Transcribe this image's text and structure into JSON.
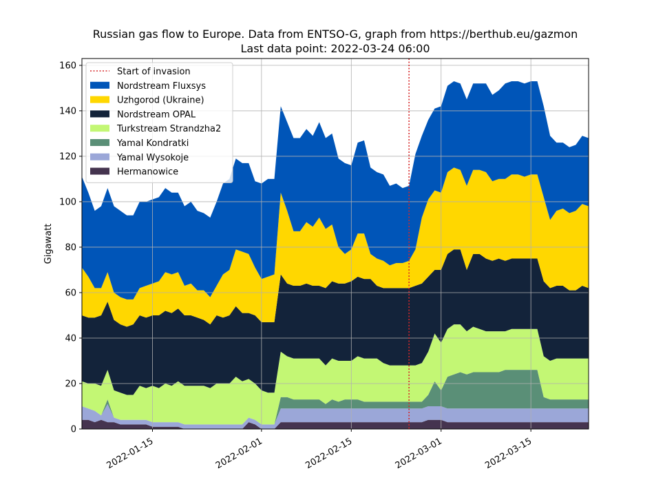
{
  "chart_data": {
    "type": "area",
    "stacked": true,
    "title": "Russian gas flow to Europe. Data from ENTSO-G, graph from https://berthub.eu/gazmon",
    "subtitle": "Last data point: 2022-03-24 06:00",
    "xlabel": "",
    "ylabel": "Gigawatt",
    "x_range": [
      "2022-01-04",
      "2022-03-24"
    ],
    "ylim": [
      0,
      163
    ],
    "grid": true,
    "legend_position": "top-left",
    "x_ticks": [
      "2022-01-15",
      "2022-02-01",
      "2022-02-15",
      "2022-03-01",
      "2022-03-15"
    ],
    "y_ticks": [
      0,
      20,
      40,
      60,
      80,
      100,
      120,
      140,
      160
    ],
    "annotation": {
      "label": "Start of invasion",
      "x": "2022-02-24",
      "color": "#d62728",
      "style": "dotted"
    },
    "x": [
      "2022-01-04",
      "2022-01-05",
      "2022-01-06",
      "2022-01-07",
      "2022-01-08",
      "2022-01-09",
      "2022-01-10",
      "2022-01-11",
      "2022-01-12",
      "2022-01-13",
      "2022-01-14",
      "2022-01-15",
      "2022-01-16",
      "2022-01-17",
      "2022-01-18",
      "2022-01-19",
      "2022-01-20",
      "2022-01-21",
      "2022-01-22",
      "2022-01-23",
      "2022-01-24",
      "2022-01-25",
      "2022-01-26",
      "2022-01-27",
      "2022-01-28",
      "2022-01-29",
      "2022-01-30",
      "2022-01-31",
      "2022-02-01",
      "2022-02-02",
      "2022-02-03",
      "2022-02-04",
      "2022-02-05",
      "2022-02-06",
      "2022-02-07",
      "2022-02-08",
      "2022-02-09",
      "2022-02-10",
      "2022-02-11",
      "2022-02-12",
      "2022-02-13",
      "2022-02-14",
      "2022-02-15",
      "2022-02-16",
      "2022-02-17",
      "2022-02-18",
      "2022-02-19",
      "2022-02-20",
      "2022-02-21",
      "2022-02-22",
      "2022-02-23",
      "2022-02-24",
      "2022-02-25",
      "2022-02-26",
      "2022-02-27",
      "2022-02-28",
      "2022-03-01",
      "2022-03-02",
      "2022-03-03",
      "2022-03-04",
      "2022-03-05",
      "2022-03-06",
      "2022-03-07",
      "2022-03-08",
      "2022-03-09",
      "2022-03-10",
      "2022-03-11",
      "2022-03-12",
      "2022-03-13",
      "2022-03-14",
      "2022-03-15",
      "2022-03-16",
      "2022-03-17",
      "2022-03-18",
      "2022-03-19",
      "2022-03-20",
      "2022-03-21",
      "2022-03-22",
      "2022-03-23",
      "2022-03-24"
    ],
    "series": [
      {
        "name": "Hermanowice",
        "color": "#45344f",
        "values": [
          4,
          4,
          3,
          4,
          3,
          3,
          2,
          2,
          2,
          2,
          2,
          1,
          1,
          1,
          1,
          1,
          0,
          0,
          0,
          0,
          0,
          0,
          0,
          0,
          0,
          0,
          3,
          2,
          0,
          0,
          0,
          3,
          3,
          3,
          3,
          3,
          3,
          3,
          3,
          3,
          3,
          3,
          3,
          3,
          3,
          3,
          3,
          3,
          3,
          3,
          3,
          3,
          3,
          3,
          4,
          4,
          4,
          3,
          3,
          3,
          3,
          3,
          3,
          3,
          3,
          3,
          3,
          3,
          3,
          3,
          3,
          3,
          3,
          3,
          3,
          3,
          3,
          3,
          3,
          3
        ]
      },
      {
        "name": "Yamal Wysokoje",
        "color": "#9ba7d8",
        "values": [
          6,
          5,
          5,
          2,
          8,
          2,
          2,
          2,
          2,
          2,
          2,
          2,
          2,
          2,
          2,
          2,
          2,
          2,
          2,
          2,
          2,
          2,
          2,
          2,
          2,
          2,
          2,
          2,
          2,
          2,
          2,
          6,
          6,
          6,
          6,
          6,
          6,
          6,
          6,
          6,
          6,
          6,
          6,
          6,
          6,
          6,
          6,
          6,
          6,
          6,
          6,
          6,
          6,
          6,
          6,
          6,
          6,
          6,
          6,
          6,
          6,
          6,
          6,
          6,
          6,
          6,
          6,
          6,
          6,
          6,
          6,
          6,
          6,
          6,
          6,
          6,
          6,
          6,
          6,
          6
        ]
      },
      {
        "name": "Yamal Kondratki",
        "color": "#5a8f77",
        "values": [
          0,
          0,
          0,
          0,
          2,
          0,
          0,
          0,
          0,
          0,
          0,
          0,
          0,
          0,
          0,
          0,
          0,
          0,
          0,
          0,
          0,
          0,
          0,
          0,
          0,
          0,
          0,
          0,
          0,
          0,
          0,
          5,
          5,
          4,
          4,
          4,
          4,
          4,
          2,
          4,
          3,
          4,
          4,
          4,
          3,
          3,
          3,
          3,
          3,
          3,
          3,
          3,
          3,
          3,
          5,
          11,
          7,
          14,
          15,
          16,
          15,
          16,
          16,
          16,
          16,
          16,
          17,
          17,
          17,
          17,
          17,
          17,
          5,
          4,
          4,
          4,
          4,
          4,
          4,
          4
        ]
      },
      {
        "name": "Turkstream Strandzha2",
        "color": "#c3f774",
        "values": [
          11,
          11,
          12,
          13,
          13,
          12,
          12,
          11,
          11,
          15,
          14,
          16,
          15,
          17,
          16,
          18,
          17,
          17,
          17,
          17,
          16,
          18,
          18,
          18,
          21,
          19,
          17,
          16,
          15,
          14,
          14,
          20,
          18,
          18,
          18,
          18,
          18,
          18,
          17,
          18,
          18,
          17,
          17,
          19,
          19,
          19,
          19,
          17,
          16,
          16,
          16,
          16,
          16,
          17,
          19,
          21,
          21,
          21,
          22,
          21,
          19,
          20,
          19,
          18,
          18,
          18,
          17,
          18,
          18,
          18,
          18,
          18,
          18,
          17,
          18,
          18,
          18,
          18,
          18,
          18
        ]
      },
      {
        "name": "Nordstream OPAL",
        "color": "#13233a",
        "values": [
          29,
          29,
          29,
          31,
          30,
          31,
          30,
          30,
          31,
          31,
          31,
          31,
          32,
          32,
          32,
          32,
          31,
          31,
          30,
          29,
          28,
          30,
          29,
          30,
          31,
          30,
          29,
          30,
          30,
          31,
          31,
          34,
          32,
          32,
          32,
          33,
          32,
          32,
          34,
          34,
          34,
          34,
          35,
          35,
          35,
          35,
          32,
          33,
          34,
          34,
          34,
          34,
          35,
          35,
          33,
          28,
          32,
          33,
          33,
          33,
          27,
          32,
          33,
          32,
          31,
          32,
          31,
          31,
          31,
          31,
          31,
          31,
          33,
          32,
          32,
          32,
          30,
          30,
          32,
          31
        ]
      },
      {
        "name": "Uzhgorod (Ukraine)",
        "color": "#ffd700",
        "values": [
          21,
          18,
          13,
          12,
          13,
          12,
          12,
          12,
          11,
          12,
          14,
          14,
          15,
          17,
          17,
          16,
          13,
          14,
          12,
          13,
          12,
          13,
          19,
          20,
          25,
          27,
          26,
          21,
          19,
          20,
          21,
          36,
          32,
          24,
          24,
          27,
          26,
          30,
          26,
          25,
          16,
          13,
          14,
          19,
          20,
          11,
          12,
          12,
          10,
          11,
          11,
          12,
          16,
          29,
          34,
          35,
          34,
          36,
          36,
          35,
          37,
          37,
          37,
          38,
          35,
          35,
          36,
          37,
          37,
          36,
          37,
          37,
          37,
          30,
          33,
          34,
          34,
          35,
          36,
          36
        ]
      },
      {
        "name": "Nordstream Fluxsys",
        "color": "#0055b8",
        "values": [
          40,
          37,
          34,
          36,
          37,
          38,
          38,
          37,
          37,
          38,
          37,
          37,
          37,
          37,
          36,
          35,
          35,
          36,
          35,
          34,
          35,
          37,
          40,
          40,
          40,
          39,
          40,
          38,
          42,
          43,
          42,
          38,
          39,
          41,
          41,
          41,
          40,
          42,
          40,
          40,
          39,
          40,
          37,
          40,
          41,
          38,
          38,
          38,
          35,
          35,
          33,
          33,
          42,
          36,
          35,
          36,
          38,
          38,
          38,
          38,
          38,
          38,
          38,
          39,
          38,
          39,
          42,
          41,
          41,
          41,
          41,
          41,
          40,
          37,
          30,
          29,
          29,
          29,
          30,
          30
        ]
      }
    ]
  }
}
